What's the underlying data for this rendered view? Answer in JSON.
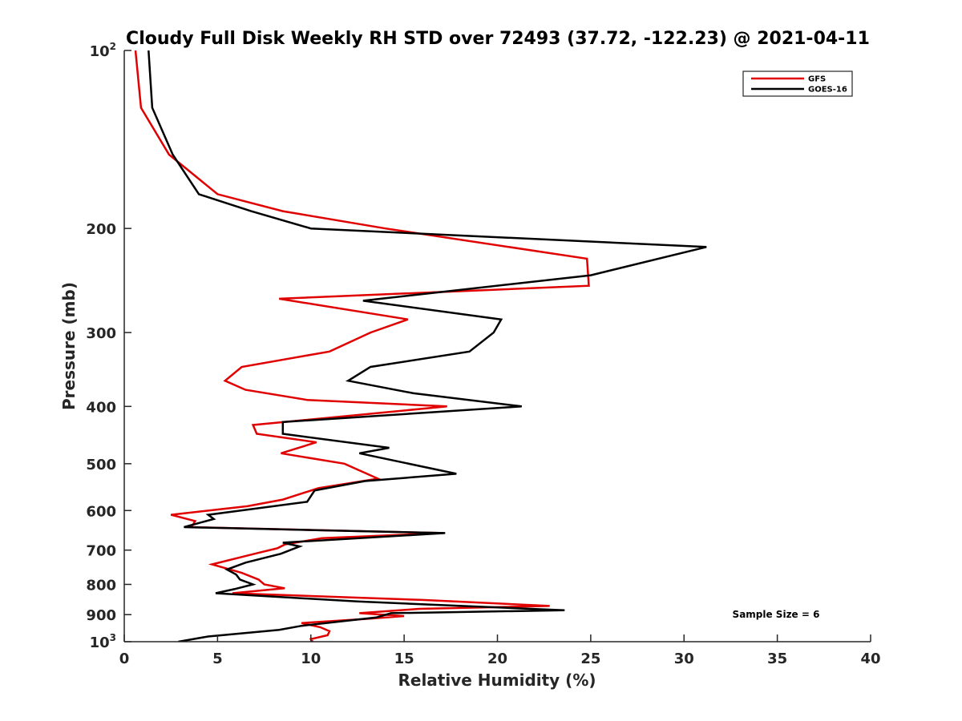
{
  "chart_data": {
    "type": "line",
    "title": "Cloudy Full Disk Weekly RH STD over 72493 (37.72, -122.23) @ 2021-04-11",
    "xlabel": "Relative Humidity (%)",
    "ylabel": "Pressure (mb)",
    "xlim": [
      0,
      40
    ],
    "ylim": [
      100,
      1000
    ],
    "yscale": "log",
    "y_reversed": true,
    "grid": false,
    "legend_position": "top-right",
    "annotation": "Sample Size = 6",
    "x_ticks": [
      0,
      5,
      10,
      15,
      20,
      25,
      30,
      35,
      40
    ],
    "x_tick_labels": [
      "0",
      "5",
      "10",
      "15",
      "20",
      "25",
      "30",
      "35",
      "40"
    ],
    "y_ticks": [
      100,
      200,
      300,
      400,
      500,
      600,
      700,
      800,
      900,
      1000
    ],
    "y_tick_labels": [
      {
        "base": "10",
        "exp": "2"
      },
      {
        "base": "200",
        "exp": ""
      },
      {
        "base": "300",
        "exp": ""
      },
      {
        "base": "400",
        "exp": ""
      },
      {
        "base": "500",
        "exp": ""
      },
      {
        "base": "600",
        "exp": ""
      },
      {
        "base": "700",
        "exp": ""
      },
      {
        "base": "800",
        "exp": ""
      },
      {
        "base": "900",
        "exp": ""
      },
      {
        "base": "10",
        "exp": "3"
      }
    ],
    "series": [
      {
        "name": "GFS",
        "color": "#e00000",
        "points": [
          [
            0.6,
            100
          ],
          [
            0.9,
            125
          ],
          [
            2.4,
            150
          ],
          [
            5.0,
            175
          ],
          [
            8.5,
            187
          ],
          [
            14.0,
            200
          ],
          [
            24.8,
            225
          ],
          [
            24.9,
            250
          ],
          [
            8.3,
            263
          ],
          [
            15.2,
            285
          ],
          [
            13.2,
            300
          ],
          [
            11.0,
            323
          ],
          [
            6.3,
            343
          ],
          [
            5.4,
            362
          ],
          [
            6.5,
            375
          ],
          [
            9.8,
            390
          ],
          [
            17.3,
            400
          ],
          [
            6.9,
            430
          ],
          [
            7.1,
            445
          ],
          [
            10.3,
            460
          ],
          [
            8.4,
            480
          ],
          [
            11.8,
            500
          ],
          [
            13.6,
            530
          ],
          [
            10.4,
            550
          ],
          [
            8.5,
            575
          ],
          [
            6.6,
            590
          ],
          [
            2.5,
            610
          ],
          [
            3.8,
            625
          ],
          [
            3.6,
            640
          ],
          [
            17.1,
            655
          ],
          [
            10.6,
            668
          ],
          [
            8.6,
            685
          ],
          [
            8.2,
            695
          ],
          [
            7.0,
            710
          ],
          [
            4.7,
            740
          ],
          [
            6.3,
            765
          ],
          [
            7.2,
            785
          ],
          [
            7.5,
            800
          ],
          [
            8.6,
            812
          ],
          [
            5.8,
            828
          ],
          [
            16.0,
            850
          ],
          [
            22.8,
            870
          ],
          [
            15.8,
            880
          ],
          [
            12.6,
            895
          ],
          [
            15.0,
            905
          ],
          [
            13.0,
            915
          ],
          [
            9.5,
            930
          ],
          [
            10.5,
            945
          ],
          [
            11.0,
            960
          ],
          [
            10.9,
            975
          ],
          [
            10.0,
            990
          ],
          [
            10.1,
            1000
          ]
        ]
      },
      {
        "name": "GOES-16",
        "color": "#000000",
        "points": [
          [
            1.3,
            100
          ],
          [
            1.5,
            125
          ],
          [
            2.6,
            150
          ],
          [
            4.0,
            175
          ],
          [
            6.8,
            187
          ],
          [
            10.0,
            200
          ],
          [
            31.2,
            215
          ],
          [
            25.0,
            240
          ],
          [
            12.8,
            265
          ],
          [
            20.2,
            285
          ],
          [
            19.8,
            300
          ],
          [
            18.5,
            323
          ],
          [
            13.2,
            343
          ],
          [
            12.0,
            362
          ],
          [
            15.5,
            380
          ],
          [
            21.3,
            400
          ],
          [
            8.5,
            425
          ],
          [
            8.5,
            445
          ],
          [
            14.2,
            470
          ],
          [
            12.6,
            480
          ],
          [
            17.8,
            520
          ],
          [
            12.9,
            535
          ],
          [
            10.2,
            555
          ],
          [
            9.8,
            580
          ],
          [
            4.5,
            610
          ],
          [
            4.8,
            620
          ],
          [
            3.2,
            640
          ],
          [
            17.2,
            655
          ],
          [
            8.5,
            680
          ],
          [
            9.4,
            690
          ],
          [
            8.4,
            710
          ],
          [
            6.5,
            735
          ],
          [
            5.5,
            755
          ],
          [
            6.0,
            770
          ],
          [
            6.2,
            785
          ],
          [
            6.9,
            800
          ],
          [
            5.9,
            815
          ],
          [
            4.9,
            828
          ],
          [
            12.5,
            855
          ],
          [
            23.6,
            885
          ],
          [
            14.3,
            895
          ],
          [
            13.5,
            910
          ],
          [
            9.5,
            940
          ],
          [
            8.3,
            955
          ],
          [
            4.5,
            980
          ],
          [
            2.9,
            1000
          ]
        ]
      }
    ]
  }
}
